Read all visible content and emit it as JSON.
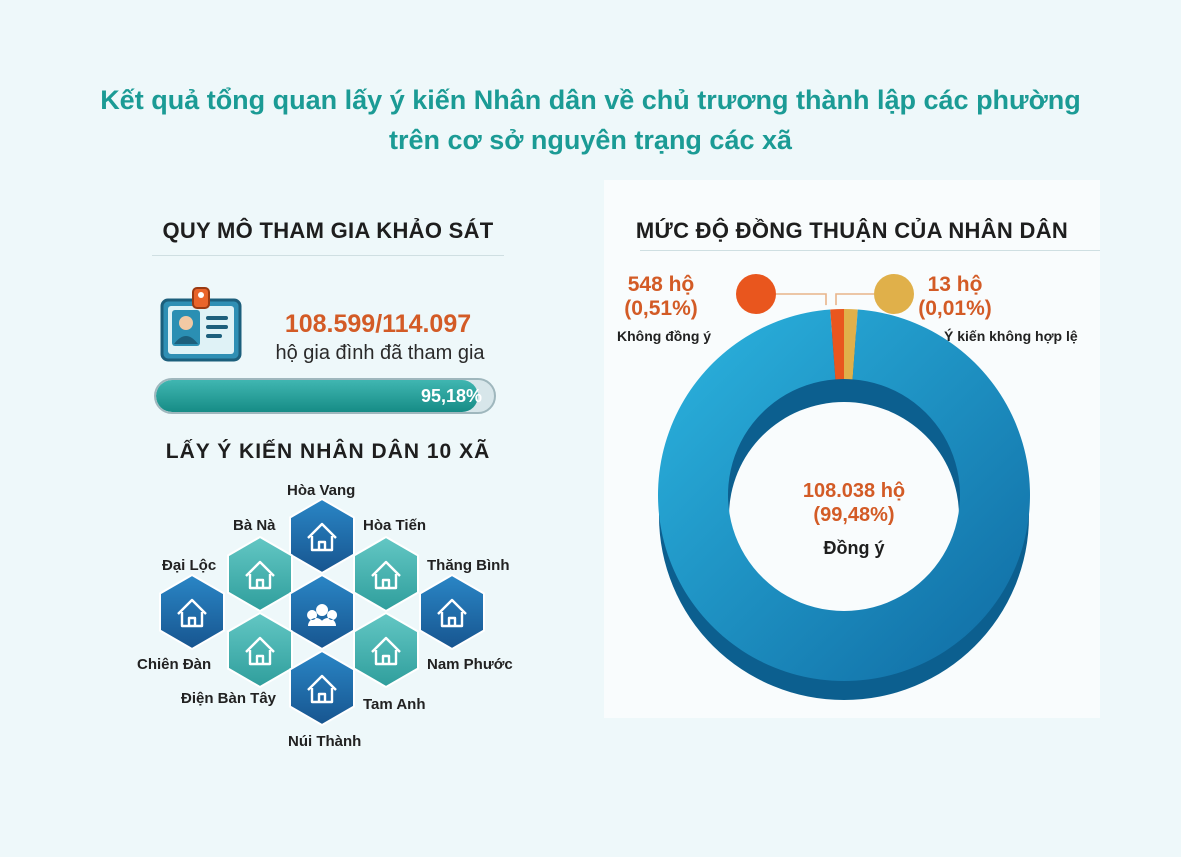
{
  "title": {
    "line1": "Kết quả tổng quan lấy ý kiến Nhân dân về chủ trương thành lập các phường",
    "line2": "trên cơ sở nguyên trạng các xã"
  },
  "survey": {
    "heading": "QUY MÔ THAM GIA KHẢO SÁT",
    "participants": "108.599/114.097",
    "participants_label": "hộ gia đình đã tham gia",
    "participation_fraction": 0.9518,
    "participation_rate": "95,18%",
    "icon": "id-card-icon"
  },
  "communes": {
    "heading": "LẤY Ý KIẾN NHÂN DÂN 10 XÃ",
    "names": [
      "Hòa Vang",
      "Bà Nà",
      "Hòa Tiến",
      "Đại Lộc",
      "Thăng Bình",
      "Chiên Đàn",
      "Nam Phước",
      "Điện Bàn Tây",
      "Tam Anh",
      "Núi Thành"
    ],
    "center_icon": "people-group-icon"
  },
  "consensus": {
    "heading": "MỨC ĐỘ ĐỒNG THUẬN CỦA NHÂN DÂN"
  },
  "chart_data": {
    "type": "pie",
    "title": "MỨC ĐỘ ĐỒNG THUẬN CỦA NHÂN DÂN",
    "slices": [
      {
        "label": "Đồng ý",
        "value_text": "108.038 hộ",
        "percent_text": "(99,48%)",
        "households": 108038,
        "percent": 99.48,
        "color": "#1a8fc9"
      },
      {
        "label": "Không đồng ý",
        "value_text": "548 hộ",
        "percent_text": "(0,51%)",
        "households": 548,
        "percent": 0.51,
        "color": "#e9561e"
      },
      {
        "label": "Ý kiến không hợp lệ",
        "value_text": "13 hộ",
        "percent_text": "(0,01%)",
        "households": 13,
        "percent": 0.01,
        "color": "#e0b04a"
      }
    ]
  },
  "colors": {
    "title": "#1b9b95",
    "accent_orange": "#d35b26",
    "progress_fill": "#168c86",
    "hex_fill": "#1f72b6"
  }
}
